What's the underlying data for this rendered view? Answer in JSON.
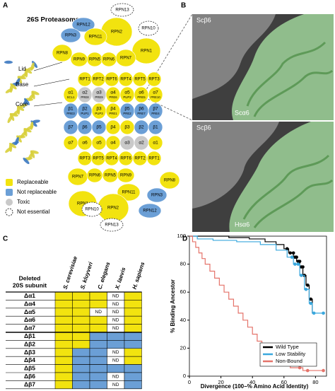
{
  "panel_a": {
    "label": "A",
    "title": "26S Proteasome",
    "side_labels": [
      "Lid",
      "Base",
      "Core"
    ],
    "status_colors": {
      "replaceable": "#f2e30f",
      "not_replaceable": "#6b9fd6",
      "toxic": "#c9c9c9",
      "not_essential": "#ffffff"
    },
    "legend": [
      {
        "label": "Replaceable",
        "status": "replaceable"
      },
      {
        "label": "Not replaceable",
        "status": "not_replaceable"
      },
      {
        "label": "Toxic",
        "status": "toxic"
      },
      {
        "label": "Not essential",
        "status": "not_essential"
      }
    ],
    "nodes": [
      {
        "label": "RPN13",
        "status": "not_essential"
      },
      {
        "label": "RPN10",
        "status": "not_essential"
      },
      {
        "label": "RPN12",
        "status": "not_replaceable"
      },
      {
        "label": "RPN3",
        "status": "not_replaceable"
      },
      {
        "label": "RPN2",
        "status": "replaceable"
      },
      {
        "label": "RPN11",
        "status": "replaceable"
      },
      {
        "label": "RPN8",
        "status": "replaceable"
      },
      {
        "label": "RPN1",
        "status": "replaceable"
      },
      {
        "label": "RPN9",
        "status": "replaceable"
      },
      {
        "label": "RPN5",
        "status": "replaceable"
      },
      {
        "label": "RPN6",
        "status": "replaceable"
      },
      {
        "label": "RPN7",
        "status": "replaceable"
      },
      {
        "label": "RPT1",
        "status": "replaceable"
      },
      {
        "label": "RPT2",
        "status": "replaceable"
      },
      {
        "label": "RPT6",
        "status": "replaceable"
      },
      {
        "label": "RPT4",
        "status": "replaceable"
      },
      {
        "label": "RPT5",
        "status": "replaceable"
      },
      {
        "label": "RPT3",
        "status": "replaceable"
      },
      {
        "label": "α1",
        "sub": "SCL1",
        "status": "replaceable"
      },
      {
        "label": "α2",
        "sub": "PRE8",
        "status": "toxic"
      },
      {
        "label": "α3",
        "sub": "PRE9",
        "status": "toxic"
      },
      {
        "label": "α4",
        "sub": "PRE6",
        "status": "replaceable"
      },
      {
        "label": "α5",
        "sub": "PUP2",
        "status": "replaceable"
      },
      {
        "label": "α6",
        "sub": "PRE5",
        "status": "replaceable"
      },
      {
        "label": "α7",
        "sub": "PRE10",
        "status": "replaceable"
      },
      {
        "label": "β1",
        "sub": "PRE3",
        "status": "not_replaceable"
      },
      {
        "label": "β2",
        "sub": "PUP1",
        "status": "not_replaceable"
      },
      {
        "label": "β3",
        "sub": "PUP3",
        "status": "replaceable"
      },
      {
        "label": "β4",
        "sub": "PRE1",
        "status": "replaceable"
      },
      {
        "label": "β5",
        "sub": "PRE2",
        "status": "not_replaceable"
      },
      {
        "label": "β6",
        "sub": "PRE7",
        "status": "not_replaceable"
      },
      {
        "label": "β7",
        "sub": "PRE4",
        "status": "not_replaceable"
      },
      {
        "label": "β7",
        "status": "not_replaceable"
      },
      {
        "label": "β6",
        "status": "not_replaceable"
      },
      {
        "label": "β5",
        "status": "not_replaceable"
      },
      {
        "label": "β4",
        "status": "replaceable"
      },
      {
        "label": "β3",
        "status": "replaceable"
      },
      {
        "label": "β2",
        "status": "not_replaceable"
      },
      {
        "label": "β1",
        "status": "not_replaceable"
      },
      {
        "label": "α7",
        "status": "replaceable"
      },
      {
        "label": "α6",
        "status": "replaceable"
      },
      {
        "label": "α5",
        "status": "replaceable"
      },
      {
        "label": "α4",
        "status": "replaceable"
      },
      {
        "label": "α3",
        "status": "toxic"
      },
      {
        "label": "α2",
        "status": "toxic"
      },
      {
        "label": "α1",
        "status": "replaceable"
      },
      {
        "label": "RPT3",
        "status": "replaceable"
      },
      {
        "label": "RPT5",
        "status": "replaceable"
      },
      {
        "label": "RPT4",
        "status": "replaceable"
      },
      {
        "label": "RPT6",
        "status": "replaceable"
      },
      {
        "label": "RPT2",
        "status": "replaceable"
      },
      {
        "label": "RPT1",
        "status": "replaceable"
      },
      {
        "label": "RPN7",
        "status": "replaceable"
      },
      {
        "label": "RPN6",
        "status": "replaceable"
      },
      {
        "label": "RPN5",
        "status": "replaceable"
      },
      {
        "label": "RPN9",
        "status": "replaceable"
      },
      {
        "label": "RPN8",
        "status": "replaceable"
      },
      {
        "label": "RPN1",
        "status": "replaceable"
      },
      {
        "label": "RPN11",
        "status": "replaceable"
      },
      {
        "label": "RPN3",
        "status": "not_replaceable"
      },
      {
        "label": "RPN2",
        "status": "replaceable"
      },
      {
        "label": "RPN12",
        "status": "not_replaceable"
      },
      {
        "label": "RPN10",
        "status": "not_essential"
      },
      {
        "label": "RPN13",
        "status": "not_essential"
      }
    ]
  },
  "panel_b": {
    "label": "B",
    "images": [
      {
        "labels": [
          "Scβ6",
          "Scα6"
        ]
      },
      {
        "labels": [
          "Scβ6",
          "Hsα6"
        ]
      }
    ]
  },
  "panel_c": {
    "label": "C",
    "header": [
      "Deleted",
      "20S subunit"
    ],
    "columns": [
      "S. cerevisiae",
      "S. kluyveri",
      "C. elegans",
      "X. laevis",
      "H. sapiens"
    ],
    "rows": [
      {
        "label": "Δα1",
        "cells": [
          "replaceable",
          "replaceable",
          "replaceable",
          {
            "label": "ND"
          },
          "replaceable"
        ]
      },
      {
        "label": "Δα4",
        "cells": [
          "replaceable",
          "replaceable",
          "replaceable",
          {
            "label": "ND"
          },
          "replaceable"
        ]
      },
      {
        "label": "Δα5",
        "cells": [
          "replaceable",
          "replaceable",
          {
            "label": "ND"
          },
          {
            "label": "ND"
          },
          "replaceable"
        ]
      },
      {
        "label": "Δα6",
        "cells": [
          "replaceable",
          "replaceable",
          "replaceable",
          {
            "label": "ND"
          },
          "replaceable"
        ]
      },
      {
        "label": "Δα7",
        "cells": [
          "replaceable",
          "replaceable",
          "replaceable",
          {
            "label": "ND"
          },
          "replaceable"
        ]
      },
      {
        "label": "Δβ1",
        "cells": [
          "replaceable",
          "replaceable",
          "not_replaceable",
          "not_replaceable",
          "not_replaceable"
        ]
      },
      {
        "label": "Δβ2",
        "cells": [
          "replaceable",
          "replaceable",
          "not_replaceable",
          "not_replaceable",
          "not_replaceable"
        ]
      },
      {
        "label": "Δβ3",
        "cells": [
          "replaceable",
          "not_replaceable",
          "not_replaceable",
          {
            "label": "ND"
          },
          "replaceable"
        ]
      },
      {
        "label": "Δβ4",
        "cells": [
          "replaceable",
          "not_replaceable",
          "not_replaceable",
          {
            "label": "ND"
          },
          "replaceable"
        ]
      },
      {
        "label": "Δβ5",
        "cells": [
          "replaceable",
          "not_replaceable",
          "not_replaceable",
          "not_replaceable",
          "not_replaceable"
        ]
      },
      {
        "label": "Δβ6",
        "cells": [
          "replaceable",
          "not_replaceable",
          "not_replaceable",
          {
            "label": "ND"
          },
          "not_replaceable"
        ]
      },
      {
        "label": "Δβ7",
        "cells": [
          "replaceable",
          "not_replaceable",
          "not_replaceable",
          {
            "label": "ND"
          },
          "not_replaceable"
        ]
      }
    ]
  },
  "chart_data": {
    "type": "line",
    "panel_label": "D",
    "ylabel": "% Binding Ancestor",
    "xlabel": "Divergence (100−% Amino Acid Identity)",
    "xlim": [
      0,
      87
    ],
    "ylim": [
      0,
      100
    ],
    "xticks": [
      0,
      20,
      40,
      60,
      80
    ],
    "yticks": [
      0,
      20,
      40,
      60,
      80,
      100
    ],
    "legend": "lower right",
    "series": [
      {
        "name": "Wild Type",
        "color": "#000000",
        "x": [
          0,
          25,
          25,
          38,
          38,
          48,
          48,
          55,
          55,
          60,
          60,
          63,
          63,
          66,
          66,
          68,
          68,
          70,
          70,
          72,
          72,
          74,
          74,
          76,
          76,
          78,
          78,
          80
        ],
        "values": [
          100,
          100,
          99,
          99,
          98,
          98,
          96,
          96,
          94,
          94,
          91,
          91,
          88,
          88,
          85,
          85,
          82,
          82,
          78,
          78,
          72,
          72,
          65,
          65,
          55,
          55,
          45,
          45
        ],
        "markers": {
          "x": [
            62,
            64,
            66,
            67,
            68,
            69,
            70,
            71,
            72,
            73,
            75,
            77
          ],
          "values": [
            91,
            88,
            88,
            85,
            85,
            82,
            82,
            78,
            78,
            72,
            65,
            55
          ]
        }
      },
      {
        "name": "Low Stability",
        "color": "#3aa8de",
        "x": [
          0,
          5,
          5,
          15,
          15,
          30,
          30,
          45,
          45,
          55,
          55,
          62,
          62,
          66,
          66,
          70,
          70,
          73,
          73,
          76,
          76,
          78,
          78,
          86
        ],
        "values": [
          100,
          100,
          98,
          98,
          97,
          97,
          96,
          96,
          94,
          94,
          90,
          90,
          85,
          85,
          80,
          80,
          72,
          72,
          62,
          62,
          52,
          52,
          45,
          45
        ],
        "markers": {
          "x": [
            65,
            67,
            69,
            71,
            74,
            77,
            79,
            85
          ],
          "values": [
            85,
            80,
            80,
            72,
            62,
            52,
            45,
            45
          ]
        }
      },
      {
        "name": "Non-Bound",
        "color": "#e5736a",
        "x": [
          0,
          2,
          2,
          4,
          4,
          6,
          6,
          8,
          8,
          10,
          10,
          13,
          13,
          16,
          16,
          19,
          19,
          22,
          22,
          25,
          25,
          28,
          28,
          31,
          31,
          34,
          34,
          37,
          37,
          40,
          40,
          43,
          43,
          46,
          46,
          49,
          49,
          53,
          53,
          58,
          58,
          64,
          64,
          72,
          72,
          85
        ],
        "values": [
          100,
          100,
          96,
          96,
          92,
          92,
          88,
          88,
          84,
          84,
          80,
          80,
          75,
          75,
          70,
          70,
          65,
          65,
          60,
          60,
          55,
          55,
          50,
          50,
          45,
          45,
          40,
          40,
          35,
          35,
          30,
          30,
          25,
          25,
          20,
          20,
          15,
          15,
          11,
          11,
          8,
          8,
          6,
          6,
          4,
          4
        ],
        "markers": {
          "x": [
            70,
            75,
            85
          ],
          "values": [
            6,
            4,
            4
          ]
        }
      }
    ]
  }
}
